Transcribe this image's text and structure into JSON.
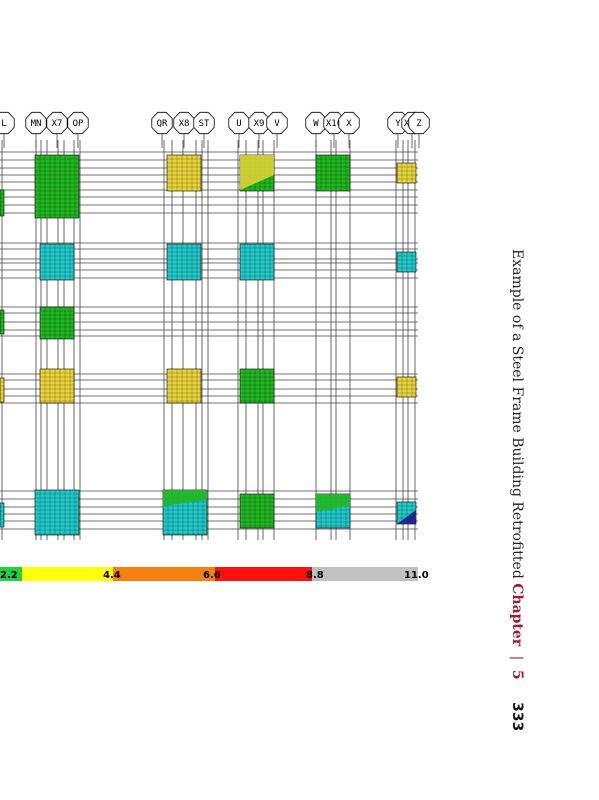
{
  "colors": {
    "green": "#22b622",
    "cyan": "#22c8c8",
    "yellow": "#e8d43a",
    "blue": "#1a2a8a",
    "grid": "#444444"
  },
  "grid_labels": [
    "L",
    "MN",
    "X7",
    "OP",
    "QR",
    "X8",
    "ST",
    "U",
    "X9",
    "V",
    "W",
    "X10",
    "X",
    "Y",
    "X11",
    "Z"
  ],
  "color_scale": {
    "labels": [
      "2.2",
      "4.4",
      "6.6",
      "8.8",
      "11.0"
    ],
    "colors": [
      "#22d040",
      "#ffff10",
      "#f58010",
      "#ff1010",
      "#c0c0c0"
    ]
  },
  "running_head": {
    "title": "Example of a Steel Frame Building Retrofitted",
    "chapter_label": "Chapter",
    "separator": "|",
    "chapter_number": "5",
    "page_number": "333"
  }
}
